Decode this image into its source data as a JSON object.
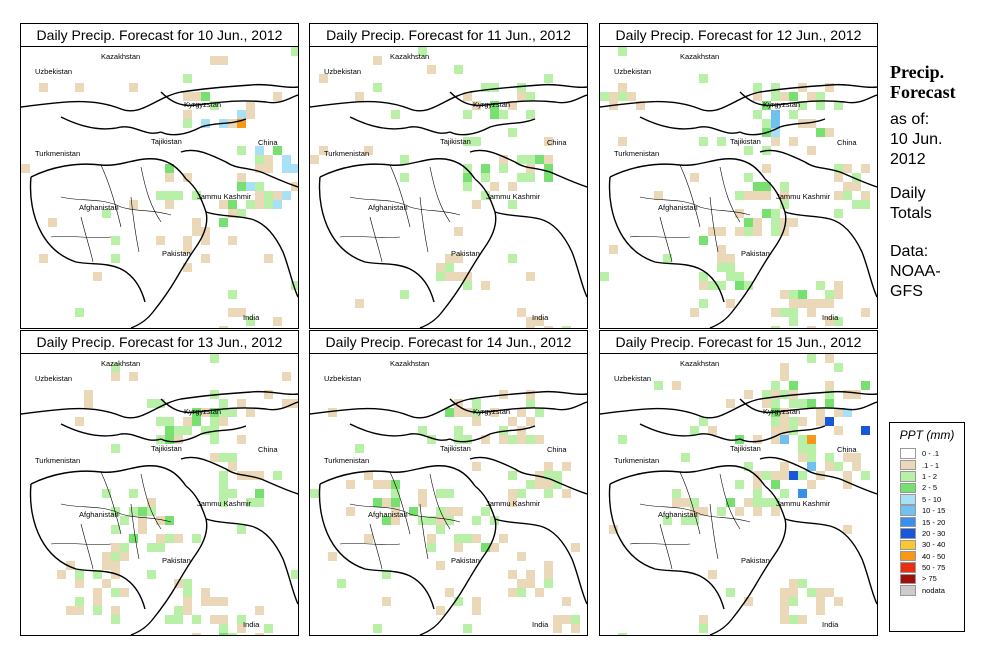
{
  "panels": [
    {
      "title": "Daily Precip. Forecast for  10 Jun., 2012",
      "seed": 11,
      "day": 0
    },
    {
      "title": "Daily Precip. Forecast for  11 Jun., 2012",
      "seed": 23,
      "day": 1
    },
    {
      "title": "Daily Precip. Forecast for  12 Jun., 2012",
      "seed": 37,
      "day": 2
    },
    {
      "title": "Daily Precip. Forecast for  13 Jun., 2012",
      "seed": 41,
      "day": 3
    },
    {
      "title": "Daily Precip. Forecast for  14 Jun., 2012",
      "seed": 53,
      "day": 4
    },
    {
      "title": "Daily Precip. Forecast for  15 Jun., 2012",
      "seed": 67,
      "day": 5
    }
  ],
  "map_labels": {
    "kazakhstan": "Kazakhstan",
    "uzbekistan": "Uzbekistan",
    "kyrgyzstan": "Kyrgyzstan",
    "tajikistan": "Tajikistan",
    "turkmenistan": "Turkmenistan",
    "china": "China",
    "afghanistan": "Afghanistan",
    "jammu_kashmir": "Jammu Kashmir",
    "pakistan": "Pakistan",
    "india": "India"
  },
  "side": {
    "title_line1": "Precip.",
    "title_line2": "Forecast",
    "asof_line1": "as of:",
    "asof_line2": "10 Jun.",
    "asof_line3": "2012",
    "totals_line1": "Daily",
    "totals_line2": "Totals",
    "data_line1": "Data:",
    "data_line2": "NOAA-",
    "data_line3": "GFS"
  },
  "legend": {
    "title": "PPT (mm)",
    "rows": [
      {
        "label": "0 - .1",
        "color": "#ffffff"
      },
      {
        "label": ".1 - 1",
        "color": "#ead8b8"
      },
      {
        "label": "1 - 2",
        "color": "#b8f0a8"
      },
      {
        "label": "2 - 5",
        "color": "#78e070"
      },
      {
        "label": "5 - 10",
        "color": "#a8e0f8"
      },
      {
        "label": "10 - 15",
        "color": "#70c0f0"
      },
      {
        "label": "15 - 20",
        "color": "#3890e8"
      },
      {
        "label": "20 - 30",
        "color": "#1858d8"
      },
      {
        "label": "30 - 40",
        "color": "#f8c830"
      },
      {
        "label": "40 - 50",
        "color": "#f89818"
      },
      {
        "label": "50 - 75",
        "color": "#e83010"
      },
      {
        "label": "> 75",
        "color": "#a01008"
      },
      {
        "label": "nodata",
        "color": "#cccccc"
      }
    ]
  }
}
